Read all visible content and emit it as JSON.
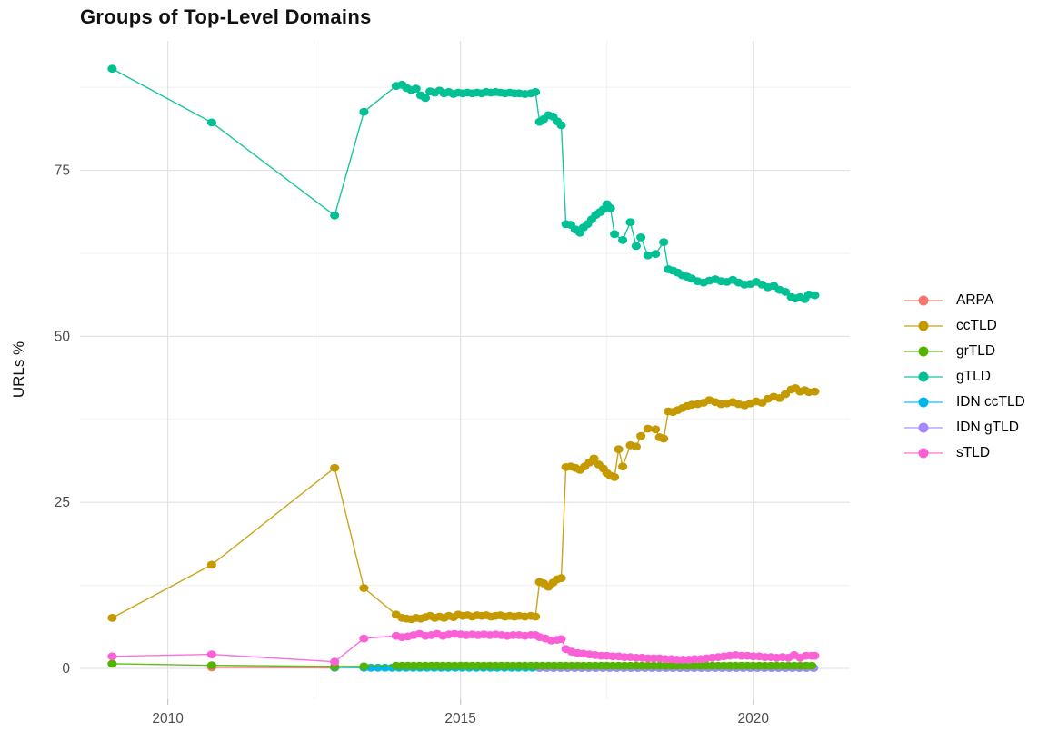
{
  "chart_data": {
    "type": "line",
    "title": "Groups of Top-Level Domains",
    "ylabel": "URLs %",
    "xlabel": "",
    "x_domain": [
      2008.5,
      2021.65
    ],
    "y_domain": [
      -4.65,
      94.5
    ],
    "x_major_ticks": [
      2010,
      2015,
      2020
    ],
    "x_minor_ticks": [
      2012.5,
      2017.5
    ],
    "y_major_ticks": [
      0,
      25,
      50,
      75
    ],
    "y_minor_ticks": [
      12.5,
      37.5,
      62.5,
      87.5
    ],
    "grid": {
      "major_color": "#E3E3E3",
      "minor_color": "#F0F0F0",
      "tick_color": "#C8C8C8"
    },
    "tick_label_color": "#4D4D4D",
    "legend_position": "right",
    "legend_order": [
      "ARPA",
      "ccTLD",
      "grTLD",
      "gTLD",
      "IDN ccTLD",
      "IDN gTLD",
      "sTLD"
    ],
    "series": [
      {
        "name": "ARPA",
        "color": "#F8766D",
        "points": [
          [
            2010.75,
            0.15
          ],
          [
            2012.85,
            0.08
          ]
        ]
      },
      {
        "name": "IDN ccTLD",
        "color": "#00B6EB",
        "points": [
          [
            2012.85,
            0.15
          ]
        ],
        "flat_run": {
          "from": 2013.35,
          "to": 2021.05,
          "step": 0.12,
          "value": 0.1
        }
      },
      {
        "name": "IDN gTLD",
        "color": "#A58AFF",
        "points": [],
        "flat_run": {
          "from": 2016.35,
          "to": 2021.05,
          "step": 0.12,
          "value": 0.05
        }
      },
      {
        "name": "grTLD",
        "color": "#53B400",
        "points": [
          [
            2009.05,
            0.7
          ],
          [
            2010.75,
            0.45
          ],
          [
            2012.85,
            0.3
          ],
          [
            2013.35,
            0.3
          ]
        ],
        "flat_run": {
          "from": 2013.9,
          "to": 2021.05,
          "step": 0.1,
          "value": 0.4
        }
      },
      {
        "name": "sTLD",
        "color": "#FB61D7",
        "points": [
          [
            2009.05,
            1.8
          ],
          [
            2010.75,
            2.1
          ],
          [
            2012.85,
            1.0
          ],
          [
            2013.35,
            4.5
          ],
          [
            2013.9,
            4.9
          ],
          [
            2014.0,
            4.7
          ],
          [
            2014.1,
            4.8
          ],
          [
            2014.2,
            5.0
          ],
          [
            2014.3,
            5.2
          ],
          [
            2014.4,
            4.9
          ],
          [
            2014.5,
            5.0
          ],
          [
            2014.6,
            5.2
          ],
          [
            2014.7,
            4.9
          ],
          [
            2014.8,
            5.1
          ],
          [
            2014.9,
            5.2
          ],
          [
            2015.0,
            5.1
          ],
          [
            2015.1,
            5.0
          ],
          [
            2015.2,
            5.1
          ],
          [
            2015.3,
            5.0
          ],
          [
            2015.4,
            5.1
          ],
          [
            2015.5,
            5.0
          ],
          [
            2015.6,
            5.1
          ],
          [
            2015.7,
            5.0
          ],
          [
            2015.8,
            4.9
          ],
          [
            2015.9,
            5.0
          ],
          [
            2016.0,
            5.0
          ],
          [
            2016.1,
            4.9
          ],
          [
            2016.2,
            5.0
          ],
          [
            2016.28,
            5.0
          ],
          [
            2016.35,
            4.7
          ],
          [
            2016.45,
            4.5
          ],
          [
            2016.55,
            4.2
          ],
          [
            2016.65,
            4.3
          ],
          [
            2016.72,
            4.4
          ],
          [
            2016.8,
            2.9
          ],
          [
            2016.9,
            2.5
          ],
          [
            2017.0,
            2.3
          ],
          [
            2017.1,
            2.2
          ],
          [
            2017.2,
            2.1
          ],
          [
            2017.3,
            2.0
          ],
          [
            2017.4,
            1.9
          ],
          [
            2017.5,
            1.9
          ],
          [
            2017.6,
            1.8
          ],
          [
            2017.7,
            1.8
          ],
          [
            2017.8,
            1.7
          ],
          [
            2017.9,
            1.7
          ],
          [
            2018.0,
            1.6
          ],
          [
            2018.1,
            1.6
          ],
          [
            2018.2,
            1.5
          ],
          [
            2018.3,
            1.5
          ],
          [
            2018.4,
            1.5
          ],
          [
            2018.5,
            1.4
          ],
          [
            2018.6,
            1.4
          ],
          [
            2018.7,
            1.3
          ],
          [
            2018.8,
            1.3
          ],
          [
            2018.9,
            1.3
          ],
          [
            2019.0,
            1.4
          ],
          [
            2019.1,
            1.4
          ],
          [
            2019.2,
            1.5
          ],
          [
            2019.3,
            1.6
          ],
          [
            2019.4,
            1.7
          ],
          [
            2019.5,
            1.8
          ],
          [
            2019.6,
            1.9
          ],
          [
            2019.7,
            2.0
          ],
          [
            2019.8,
            1.9
          ],
          [
            2019.9,
            1.9
          ],
          [
            2020.0,
            1.8
          ],
          [
            2020.1,
            1.8
          ],
          [
            2020.2,
            1.7
          ],
          [
            2020.3,
            1.7
          ],
          [
            2020.4,
            1.6
          ],
          [
            2020.5,
            1.7
          ],
          [
            2020.6,
            1.6
          ],
          [
            2020.7,
            2.0
          ],
          [
            2020.8,
            1.6
          ],
          [
            2020.9,
            1.9
          ],
          [
            2021.0,
            1.9
          ],
          [
            2021.05,
            1.9
          ]
        ]
      },
      {
        "name": "ccTLD",
        "color": "#C49A00",
        "points": [
          [
            2009.05,
            7.6
          ],
          [
            2010.75,
            15.6
          ],
          [
            2012.85,
            30.2
          ],
          [
            2013.35,
            12.1
          ],
          [
            2013.9,
            8.1
          ],
          [
            2014.0,
            7.6
          ],
          [
            2014.08,
            7.5
          ],
          [
            2014.16,
            7.4
          ],
          [
            2014.24,
            7.6
          ],
          [
            2014.32,
            7.5
          ],
          [
            2014.4,
            7.7
          ],
          [
            2014.48,
            7.9
          ],
          [
            2014.56,
            7.6
          ],
          [
            2014.64,
            7.8
          ],
          [
            2014.72,
            7.6
          ],
          [
            2014.8,
            7.9
          ],
          [
            2014.88,
            7.7
          ],
          [
            2014.96,
            8.1
          ],
          [
            2015.04,
            7.9
          ],
          [
            2015.12,
            8.0
          ],
          [
            2015.2,
            7.8
          ],
          [
            2015.28,
            8.0
          ],
          [
            2015.36,
            7.9
          ],
          [
            2015.44,
            8.0
          ],
          [
            2015.52,
            7.8
          ],
          [
            2015.6,
            7.9
          ],
          [
            2015.68,
            8.0
          ],
          [
            2015.76,
            7.8
          ],
          [
            2015.84,
            7.9
          ],
          [
            2015.92,
            7.8
          ],
          [
            2016.0,
            7.9
          ],
          [
            2016.1,
            7.8
          ],
          [
            2016.2,
            7.9
          ],
          [
            2016.28,
            7.8
          ],
          [
            2016.35,
            13.0
          ],
          [
            2016.42,
            12.8
          ],
          [
            2016.5,
            12.3
          ],
          [
            2016.58,
            12.9
          ],
          [
            2016.65,
            13.4
          ],
          [
            2016.72,
            13.6
          ],
          [
            2016.8,
            30.3
          ],
          [
            2016.88,
            30.4
          ],
          [
            2016.96,
            30.2
          ],
          [
            2017.04,
            29.9
          ],
          [
            2017.12,
            30.4
          ],
          [
            2017.2,
            31.0
          ],
          [
            2017.28,
            31.6
          ],
          [
            2017.36,
            30.7
          ],
          [
            2017.44,
            30.1
          ],
          [
            2017.5,
            29.4
          ],
          [
            2017.56,
            29.0
          ],
          [
            2017.63,
            28.8
          ],
          [
            2017.7,
            33.0
          ],
          [
            2017.77,
            30.4
          ],
          [
            2017.9,
            33.6
          ],
          [
            2018.0,
            33.4
          ],
          [
            2018.08,
            35.0
          ],
          [
            2018.2,
            36.1
          ],
          [
            2018.33,
            36.0
          ],
          [
            2018.4,
            34.8
          ],
          [
            2018.47,
            34.6
          ],
          [
            2018.55,
            38.7
          ],
          [
            2018.63,
            38.6
          ],
          [
            2018.71,
            38.9
          ],
          [
            2018.79,
            39.2
          ],
          [
            2018.87,
            39.5
          ],
          [
            2018.95,
            39.7
          ],
          [
            2019.05,
            39.8
          ],
          [
            2019.15,
            40.0
          ],
          [
            2019.25,
            40.4
          ],
          [
            2019.35,
            40.1
          ],
          [
            2019.45,
            39.8
          ],
          [
            2019.55,
            39.9
          ],
          [
            2019.65,
            40.1
          ],
          [
            2019.75,
            39.8
          ],
          [
            2019.85,
            39.6
          ],
          [
            2019.95,
            39.9
          ],
          [
            2020.05,
            40.2
          ],
          [
            2020.15,
            40.0
          ],
          [
            2020.25,
            40.6
          ],
          [
            2020.35,
            40.9
          ],
          [
            2020.45,
            40.7
          ],
          [
            2020.55,
            41.3
          ],
          [
            2020.65,
            42.0
          ],
          [
            2020.72,
            42.2
          ],
          [
            2020.8,
            41.7
          ],
          [
            2020.88,
            41.9
          ],
          [
            2020.95,
            41.6
          ],
          [
            2021.05,
            41.7
          ]
        ]
      },
      {
        "name": "gTLD",
        "color": "#00C094",
        "points": [
          [
            2009.05,
            90.3
          ],
          [
            2010.75,
            82.2
          ],
          [
            2012.85,
            68.2
          ],
          [
            2013.35,
            83.8
          ],
          [
            2013.9,
            87.7
          ],
          [
            2014.0,
            87.9
          ],
          [
            2014.08,
            87.4
          ],
          [
            2014.16,
            87.1
          ],
          [
            2014.24,
            87.3
          ],
          [
            2014.32,
            86.3
          ],
          [
            2014.4,
            85.9
          ],
          [
            2014.48,
            86.9
          ],
          [
            2014.56,
            86.7
          ],
          [
            2014.64,
            87.0
          ],
          [
            2014.72,
            86.6
          ],
          [
            2014.8,
            86.8
          ],
          [
            2014.88,
            86.5
          ],
          [
            2014.96,
            86.7
          ],
          [
            2015.04,
            86.6
          ],
          [
            2015.12,
            86.7
          ],
          [
            2015.2,
            86.6
          ],
          [
            2015.28,
            86.7
          ],
          [
            2015.36,
            86.6
          ],
          [
            2015.44,
            86.8
          ],
          [
            2015.52,
            86.7
          ],
          [
            2015.6,
            86.8
          ],
          [
            2015.68,
            86.7
          ],
          [
            2015.76,
            86.6
          ],
          [
            2015.84,
            86.7
          ],
          [
            2015.92,
            86.6
          ],
          [
            2016.0,
            86.6
          ],
          [
            2016.1,
            86.5
          ],
          [
            2016.2,
            86.6
          ],
          [
            2016.28,
            86.8
          ],
          [
            2016.35,
            82.3
          ],
          [
            2016.42,
            82.7
          ],
          [
            2016.5,
            83.3
          ],
          [
            2016.58,
            83.1
          ],
          [
            2016.65,
            82.4
          ],
          [
            2016.72,
            81.8
          ],
          [
            2016.8,
            66.9
          ],
          [
            2016.88,
            66.8
          ],
          [
            2016.96,
            66.1
          ],
          [
            2017.04,
            65.6
          ],
          [
            2017.1,
            66.4
          ],
          [
            2017.17,
            66.9
          ],
          [
            2017.24,
            67.6
          ],
          [
            2017.31,
            68.3
          ],
          [
            2017.38,
            68.7
          ],
          [
            2017.44,
            69.1
          ],
          [
            2017.5,
            69.9
          ],
          [
            2017.56,
            69.3
          ],
          [
            2017.63,
            65.4
          ],
          [
            2017.77,
            64.5
          ],
          [
            2017.9,
            67.2
          ],
          [
            2018.0,
            63.6
          ],
          [
            2018.08,
            64.9
          ],
          [
            2018.2,
            62.2
          ],
          [
            2018.33,
            62.4
          ],
          [
            2018.47,
            64.2
          ],
          [
            2018.55,
            60.1
          ],
          [
            2018.63,
            59.9
          ],
          [
            2018.71,
            59.6
          ],
          [
            2018.79,
            59.2
          ],
          [
            2018.87,
            59.0
          ],
          [
            2018.95,
            58.7
          ],
          [
            2019.05,
            58.3
          ],
          [
            2019.15,
            58.1
          ],
          [
            2019.25,
            58.4
          ],
          [
            2019.35,
            58.6
          ],
          [
            2019.45,
            58.3
          ],
          [
            2019.55,
            58.2
          ],
          [
            2019.65,
            58.5
          ],
          [
            2019.75,
            58.1
          ],
          [
            2019.85,
            57.8
          ],
          [
            2019.95,
            57.9
          ],
          [
            2020.05,
            58.2
          ],
          [
            2020.15,
            57.8
          ],
          [
            2020.25,
            57.4
          ],
          [
            2020.35,
            57.6
          ],
          [
            2020.45,
            57.0
          ],
          [
            2020.55,
            56.7
          ],
          [
            2020.65,
            55.9
          ],
          [
            2020.72,
            55.7
          ],
          [
            2020.8,
            55.9
          ],
          [
            2020.88,
            55.6
          ],
          [
            2020.95,
            56.3
          ],
          [
            2021.05,
            56.2
          ]
        ]
      }
    ]
  }
}
